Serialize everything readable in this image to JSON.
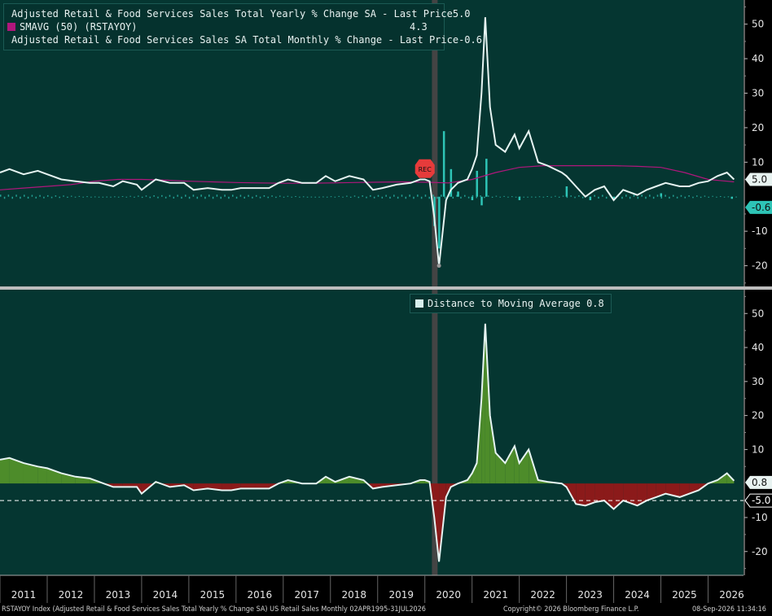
{
  "legend_top": {
    "items": [
      {
        "label": "Adjusted Retail & Food Services Sales Total Yearly % Change SA - Last Price",
        "value": "5.0",
        "color": "#d8f0ee"
      },
      {
        "label": "SMAVG (50)  (RSTAYOY)",
        "value": "4.3",
        "color": "#b0177c"
      },
      {
        "label": "Adjusted Retail & Food Services Sales SA Total Monthly % Change - Last Price",
        "value": "-0.6",
        "color": "#2ec4b6"
      }
    ]
  },
  "legend_bottom": {
    "label": "Distance to Moving Average",
    "value": "0.8",
    "color": "#d8f0ee"
  },
  "footer": {
    "left": "RSTAYOY Index (Adjusted Retail & Food Services Sales Total Yearly % Change SA) US Retail Sales Monthly 02APR1995-31JUL2026",
    "center": "Copyright© 2026 Bloomberg Finance L.P.",
    "right": "08-Sep-2026 11:34:16"
  },
  "annotation": "REC",
  "colors": {
    "background": "#053631",
    "line": "#e6f4f2",
    "ma": "#b0177c",
    "bars": "#2ec4b6",
    "positive_fill": "#4d8c2a",
    "negative_fill": "#8b1a1a",
    "recession": "#444444"
  },
  "chart_data": [
    {
      "type": "line",
      "x_labels": [
        "2011",
        "2012",
        "2013",
        "2014",
        "2015",
        "2016",
        "2017",
        "2018",
        "2019",
        "2020",
        "2021",
        "2022",
        "2023",
        "2024",
        "2025",
        "2026"
      ],
      "ylim": [
        -26,
        57
      ],
      "yticks": [
        -20,
        -10,
        10,
        20,
        30,
        40,
        50
      ],
      "recession": [
        "2020-02",
        "2020-04"
      ],
      "series": [
        {
          "name": "Adjusted Retail & Food Services Sales Total Yearly % Change SA - Last Price",
          "last": 5.0,
          "points": [
            [
              2011.0,
              7
            ],
            [
              2011.2,
              8
            ],
            [
              2011.5,
              6.5
            ],
            [
              2011.8,
              7.5
            ],
            [
              2012.0,
              6.5
            ],
            [
              2012.3,
              5
            ],
            [
              2012.6,
              4.5
            ],
            [
              2012.9,
              4
            ],
            [
              2013.1,
              4
            ],
            [
              2013.4,
              3
            ],
            [
              2013.6,
              4.5
            ],
            [
              2013.9,
              3.5
            ],
            [
              2014.0,
              2
            ],
            [
              2014.3,
              5
            ],
            [
              2014.6,
              4
            ],
            [
              2014.9,
              4
            ],
            [
              2015.1,
              2
            ],
            [
              2015.4,
              2.5
            ],
            [
              2015.7,
              2
            ],
            [
              2015.9,
              2
            ],
            [
              2016.1,
              2.5
            ],
            [
              2016.4,
              2.5
            ],
            [
              2016.7,
              2.5
            ],
            [
              2016.9,
              4
            ],
            [
              2017.1,
              5
            ],
            [
              2017.4,
              4
            ],
            [
              2017.7,
              4
            ],
            [
              2017.9,
              6
            ],
            [
              2018.1,
              4.5
            ],
            [
              2018.4,
              6
            ],
            [
              2018.7,
              5
            ],
            [
              2018.9,
              2
            ],
            [
              2019.1,
              2.5
            ],
            [
              2019.4,
              3.5
            ],
            [
              2019.7,
              4
            ],
            [
              2019.9,
              5
            ],
            [
              2020.0,
              5
            ],
            [
              2020.1,
              4.5
            ],
            [
              2020.2,
              -6
            ],
            [
              2020.3,
              -20
            ],
            [
              2020.45,
              -1
            ],
            [
              2020.55,
              2
            ],
            [
              2020.7,
              4
            ],
            [
              2020.9,
              5
            ],
            [
              2021.0,
              8
            ],
            [
              2021.1,
              12
            ],
            [
              2021.2,
              30
            ],
            [
              2021.28,
              52
            ],
            [
              2021.38,
              26
            ],
            [
              2021.5,
              15
            ],
            [
              2021.7,
              13
            ],
            [
              2021.9,
              18
            ],
            [
              2022.0,
              14
            ],
            [
              2022.2,
              19
            ],
            [
              2022.4,
              10
            ],
            [
              2022.6,
              9
            ],
            [
              2022.9,
              7
            ],
            [
              2023.0,
              6
            ],
            [
              2023.2,
              3
            ],
            [
              2023.4,
              0
            ],
            [
              2023.6,
              2
            ],
            [
              2023.8,
              3
            ],
            [
              2024.0,
              -1
            ],
            [
              2024.2,
              2
            ],
            [
              2024.5,
              0.5
            ],
            [
              2024.7,
              2
            ],
            [
              2024.9,
              3
            ],
            [
              2025.1,
              4
            ],
            [
              2025.4,
              3
            ],
            [
              2025.6,
              3
            ],
            [
              2025.8,
              4
            ],
            [
              2026.0,
              4.5
            ],
            [
              2026.2,
              6
            ],
            [
              2026.4,
              7
            ],
            [
              2026.55,
              5
            ]
          ]
        },
        {
          "name": "SMAVG (50)  (RSTAYOY)",
          "last": 4.3,
          "points": [
            [
              2011.0,
              2
            ],
            [
              2011.5,
              2.5
            ],
            [
              2012.0,
              3
            ],
            [
              2012.5,
              3.5
            ],
            [
              2013.0,
              4.5
            ],
            [
              2013.5,
              5
            ],
            [
              2014.0,
              5
            ],
            [
              2014.5,
              4.8
            ],
            [
              2015.0,
              4.5
            ],
            [
              2015.5,
              4.3
            ],
            [
              2016.0,
              4.1
            ],
            [
              2016.5,
              4
            ],
            [
              2017.0,
              3.9
            ],
            [
              2017.5,
              3.9
            ],
            [
              2018.0,
              4
            ],
            [
              2018.5,
              4.1
            ],
            [
              2019.0,
              4.2
            ],
            [
              2019.5,
              4.3
            ],
            [
              2020.0,
              4.2
            ],
            [
              2020.5,
              4
            ],
            [
              2021.0,
              5
            ],
            [
              2021.5,
              7
            ],
            [
              2022.0,
              8.5
            ],
            [
              2022.5,
              9
            ],
            [
              2023.0,
              9
            ],
            [
              2023.5,
              9
            ],
            [
              2024.0,
              9
            ],
            [
              2024.5,
              8.8
            ],
            [
              2025.0,
              8.5
            ],
            [
              2025.5,
              7
            ],
            [
              2026.0,
              5
            ],
            [
              2026.55,
              4.3
            ]
          ]
        },
        {
          "name": "Adjusted Retail & Food Services Sales SA Total Monthly % Change - Last Price",
          "last": -0.6,
          "bars": [
            [
              2020.2,
              -8.5
            ],
            [
              2020.3,
              -15
            ],
            [
              2020.4,
              19
            ],
            [
              2020.55,
              8
            ],
            [
              2020.7,
              1.5
            ],
            [
              2021.0,
              -1
            ],
            [
              2021.1,
              7.5
            ],
            [
              2021.2,
              -2.5
            ],
            [
              2021.3,
              11
            ],
            [
              2022.0,
              -1
            ],
            [
              2023.0,
              3
            ],
            [
              2023.5,
              -1
            ],
            [
              2024.0,
              -1
            ],
            [
              2025.0,
              1
            ],
            [
              2026.5,
              -0.6
            ]
          ]
        }
      ]
    },
    {
      "type": "area",
      "x_labels": [
        "2011",
        "2012",
        "2013",
        "2014",
        "2015",
        "2016",
        "2017",
        "2018",
        "2019",
        "2020",
        "2021",
        "2022",
        "2023",
        "2024",
        "2025",
        "2026"
      ],
      "ylim": [
        -27,
        57
      ],
      "yticks": [
        -20,
        -10,
        10,
        20,
        30,
        40,
        50
      ],
      "reference_line": -5.0,
      "series": [
        {
          "name": "Distance to Moving Average",
          "last": 0.8,
          "points": [
            [
              2011.0,
              7
            ],
            [
              2011.2,
              7.5
            ],
            [
              2011.5,
              6
            ],
            [
              2011.8,
              5
            ],
            [
              2012.0,
              4.5
            ],
            [
              2012.3,
              3
            ],
            [
              2012.6,
              2
            ],
            [
              2012.9,
              1.5
            ],
            [
              2013.1,
              0.5
            ],
            [
              2013.4,
              -1
            ],
            [
              2013.6,
              -1
            ],
            [
              2013.9,
              -1
            ],
            [
              2014.0,
              -3
            ],
            [
              2014.3,
              0.5
            ],
            [
              2014.6,
              -1
            ],
            [
              2014.9,
              -0.5
            ],
            [
              2015.1,
              -2
            ],
            [
              2015.4,
              -1.5
            ],
            [
              2015.7,
              -2
            ],
            [
              2015.9,
              -2
            ],
            [
              2016.1,
              -1.5
            ],
            [
              2016.4,
              -1.5
            ],
            [
              2016.7,
              -1.5
            ],
            [
              2016.9,
              0
            ],
            [
              2017.1,
              1
            ],
            [
              2017.4,
              0
            ],
            [
              2017.7,
              0
            ],
            [
              2017.9,
              2
            ],
            [
              2018.1,
              0.5
            ],
            [
              2018.4,
              2
            ],
            [
              2018.7,
              1
            ],
            [
              2018.9,
              -1.5
            ],
            [
              2019.1,
              -1
            ],
            [
              2019.4,
              -0.5
            ],
            [
              2019.7,
              0
            ],
            [
              2019.9,
              1
            ],
            [
              2020.0,
              1
            ],
            [
              2020.1,
              0.5
            ],
            [
              2020.2,
              -10
            ],
            [
              2020.3,
              -23
            ],
            [
              2020.45,
              -4
            ],
            [
              2020.55,
              -1
            ],
            [
              2020.7,
              0
            ],
            [
              2020.9,
              1
            ],
            [
              2021.0,
              3
            ],
            [
              2021.1,
              6
            ],
            [
              2021.2,
              25
            ],
            [
              2021.28,
              47
            ],
            [
              2021.38,
              20
            ],
            [
              2021.5,
              9
            ],
            [
              2021.7,
              6
            ],
            [
              2021.9,
              11
            ],
            [
              2022.0,
              6
            ],
            [
              2022.2,
              10
            ],
            [
              2022.4,
              1
            ],
            [
              2022.6,
              0.5
            ],
            [
              2022.9,
              0
            ],
            [
              2023.0,
              -1
            ],
            [
              2023.2,
              -6
            ],
            [
              2023.4,
              -6.5
            ],
            [
              2023.6,
              -5.5
            ],
            [
              2023.8,
              -5
            ],
            [
              2024.0,
              -7.5
            ],
            [
              2024.2,
              -5
            ],
            [
              2024.5,
              -6.5
            ],
            [
              2024.7,
              -5
            ],
            [
              2024.9,
              -4
            ],
            [
              2025.1,
              -3
            ],
            [
              2025.4,
              -4
            ],
            [
              2025.6,
              -3
            ],
            [
              2025.8,
              -2
            ],
            [
              2026.0,
              0
            ],
            [
              2026.2,
              1
            ],
            [
              2026.4,
              3
            ],
            [
              2026.55,
              0.8
            ]
          ]
        }
      ]
    }
  ]
}
